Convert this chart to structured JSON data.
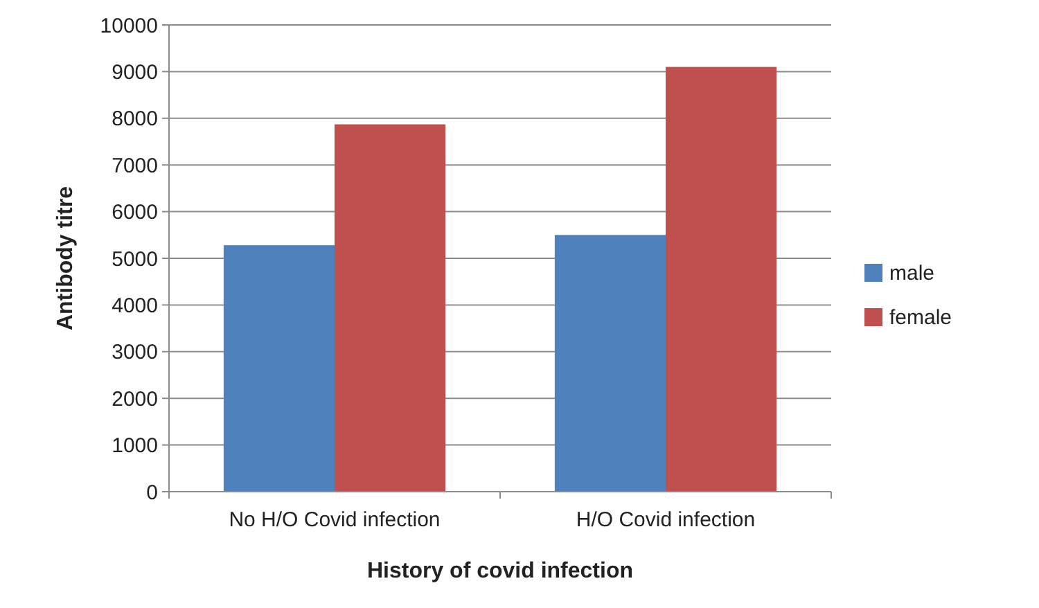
{
  "chart_data": {
    "type": "bar",
    "xlabel": "History of covid infection",
    "ylabel": "Antibody titre",
    "categories": [
      "No H/O Covid infection",
      "H/O Covid infection"
    ],
    "series": [
      {
        "name": "male",
        "color": "#4f81bd",
        "values": [
          5280,
          5500
        ]
      },
      {
        "name": "female",
        "color": "#c0504d",
        "values": [
          7870,
          9100
        ]
      }
    ],
    "ylim": [
      0,
      10000
    ],
    "yticks": [
      0,
      1000,
      2000,
      3000,
      4000,
      5000,
      6000,
      7000,
      8000,
      9000,
      10000
    ],
    "grid": "y",
    "legend": "right"
  }
}
